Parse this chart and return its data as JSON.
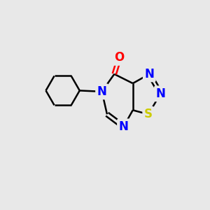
{
  "background_color": "#e8e8e8",
  "bond_color": "#000000",
  "bond_width": 1.8,
  "atom_colors": {
    "N": "#0000ff",
    "S": "#cccc00",
    "O": "#ff0000",
    "C": "#000000"
  },
  "font_size_atom": 12
}
